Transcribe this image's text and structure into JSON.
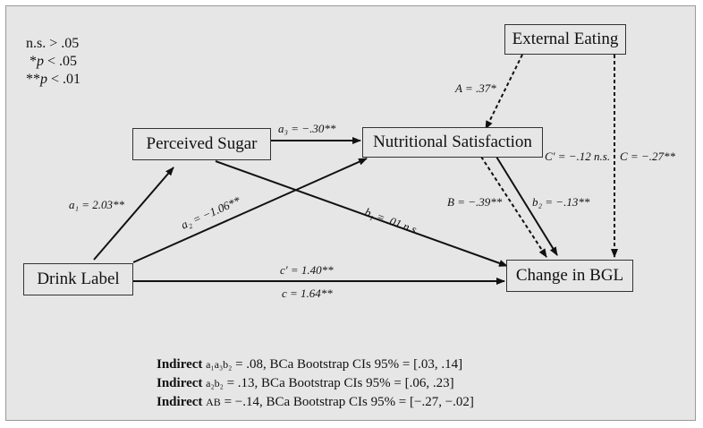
{
  "legend": [
    {
      "prefix": "",
      "italic": "",
      "text": "n.s. > .05"
    },
    {
      "prefix": " *",
      "italic": "p",
      "text": " < .05"
    },
    {
      "prefix": "**",
      "italic": "p",
      "text": " < .01"
    }
  ],
  "nodes": {
    "external_eating": "External Eating",
    "perceived_sugar": "Perceived Sugar",
    "nutritional_satisfaction": "Nutritional Satisfaction",
    "drink_label": "Drink Label",
    "change_bgl": "Change in BGL"
  },
  "paths": {
    "a1": "a₁ = 2.03**",
    "a2": "a₂ = −1.06**",
    "a3": "a₃ = −.30**",
    "b1": "b₁ = .01 n.s.",
    "b2": "b₂ = −.13**",
    "A": "A = .37*",
    "B": "B = −.39**",
    "C_prime": "C′ = −.12 n.s.",
    "C": "C = −.27**",
    "c_prime": "c′ = 1.40**",
    "c": "c = 1.64**"
  },
  "indirect": [
    {
      "label": "Indirect",
      "term": "a₁a₃b₂",
      "text": " = .08, BCa Bootstrap CIs 95% = [.03, .14]"
    },
    {
      "label": "Indirect",
      "term": "a₂b₂",
      "text": " = .13, BCa Bootstrap CIs 95% = [.06, .23]"
    },
    {
      "label": "Indirect",
      "term": "AB",
      "text": " = −.14, BCa Bootstrap CIs 95% = [−.27, −.02]"
    }
  ]
}
